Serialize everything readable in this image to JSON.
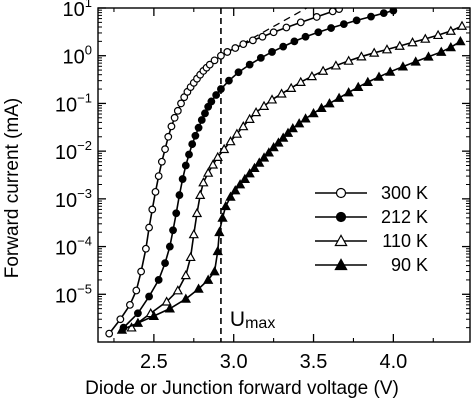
{
  "chart_data": {
    "type": "line",
    "title": "",
    "xlabel": "Diode or Junction forward voltage (V)",
    "ylabel": "Forward current  (mA)",
    "xlim": [
      2.15,
      4.48
    ],
    "ylim": [
      1e-06,
      10
    ],
    "y_scale": "log",
    "x_ticks": [
      "2.5",
      "3.0",
      "3.5",
      "4.0"
    ],
    "x_tick_values": [
      2.5,
      3.0,
      3.5,
      4.0
    ],
    "y_tick_exponents": [
      -5,
      -4,
      -3,
      -2,
      -1,
      0,
      1
    ],
    "y_tick_base": "10",
    "grid": false,
    "legend_position": "right",
    "annotations": [
      {
        "text": "U",
        "subscript": "max",
        "x": 2.92,
        "style": "vertical-dashed-line"
      },
      {
        "text": "",
        "style": "dashed-extrapolation",
        "x": [
          2.92,
          3.5
        ],
        "y": [
          1.0,
          12
        ]
      }
    ],
    "series": [
      {
        "name": "300 K",
        "marker": "open-circle",
        "x": [
          2.22,
          2.29,
          2.35,
          2.39,
          2.42,
          2.45,
          2.47,
          2.49,
          2.51,
          2.53,
          2.55,
          2.57,
          2.59,
          2.61,
          2.63,
          2.65,
          2.67,
          2.69,
          2.71,
          2.73,
          2.75,
          2.77,
          2.79,
          2.81,
          2.83,
          2.85,
          2.88,
          2.92,
          2.96,
          3.01,
          3.06,
          3.12,
          3.18,
          3.25,
          3.33,
          3.42,
          3.52,
          3.62,
          3.66
        ],
        "y": [
          1.5e-06,
          3e-06,
          6e-06,
          1.2e-05,
          3e-05,
          9e-05,
          0.00025,
          0.0006,
          0.0014,
          0.003,
          0.006,
          0.011,
          0.02,
          0.033,
          0.05,
          0.07,
          0.1,
          0.135,
          0.175,
          0.22,
          0.27,
          0.33,
          0.4,
          0.48,
          0.56,
          0.65,
          0.8,
          1.0,
          1.2,
          1.45,
          1.75,
          2.1,
          2.5,
          3.1,
          3.9,
          5.0,
          6.5,
          8.5,
          9.5
        ]
      },
      {
        "name": "212 K",
        "marker": "filled-circle",
        "x": [
          2.31,
          2.4,
          2.47,
          2.53,
          2.57,
          2.6,
          2.62,
          2.64,
          2.66,
          2.68,
          2.7,
          2.72,
          2.74,
          2.76,
          2.78,
          2.8,
          2.82,
          2.84,
          2.86,
          2.89,
          2.92,
          2.97,
          3.03,
          3.1,
          3.17,
          3.24,
          3.31,
          3.38,
          3.45,
          3.53,
          3.61,
          3.69,
          3.77,
          3.86,
          3.94,
          4.0
        ],
        "y": [
          2e-06,
          4e-06,
          9e-06,
          2e-05,
          4.5e-05,
          0.0001,
          0.00022,
          0.0005,
          0.0012,
          0.0026,
          0.005,
          0.0085,
          0.014,
          0.021,
          0.031,
          0.045,
          0.062,
          0.085,
          0.11,
          0.15,
          0.2,
          0.3,
          0.45,
          0.65,
          0.9,
          1.2,
          1.55,
          2.0,
          2.5,
          3.1,
          3.8,
          4.6,
          5.5,
          6.6,
          7.8,
          8.8
        ]
      },
      {
        "name": "110 K",
        "marker": "open-triangle",
        "x": [
          2.36,
          2.48,
          2.58,
          2.65,
          2.7,
          2.73,
          2.75,
          2.77,
          2.79,
          2.81,
          2.84,
          2.87,
          2.9,
          2.94,
          2.98,
          3.02,
          3.06,
          3.1,
          3.14,
          3.19,
          3.24,
          3.3,
          3.36,
          3.42,
          3.49,
          3.56,
          3.64,
          3.72,
          3.8,
          3.88,
          3.96,
          4.04,
          4.12,
          4.2,
          4.28,
          4.36,
          4.43
        ],
        "y": [
          2e-06,
          4e-06,
          7e-06,
          1.2e-05,
          2.5e-05,
          6e-05,
          0.00018,
          0.0005,
          0.0012,
          0.0022,
          0.0035,
          0.0052,
          0.0075,
          0.011,
          0.016,
          0.023,
          0.033,
          0.047,
          0.065,
          0.088,
          0.12,
          0.16,
          0.21,
          0.28,
          0.37,
          0.48,
          0.62,
          0.78,
          0.96,
          1.15,
          1.35,
          1.6,
          1.9,
          2.25,
          2.7,
          3.3,
          4.2
        ]
      },
      {
        "name": "90 K",
        "marker": "filled-triangle",
        "x": [
          2.3,
          2.4,
          2.5,
          2.6,
          2.7,
          2.78,
          2.84,
          2.88,
          2.9,
          2.91,
          2.93,
          2.95,
          2.98,
          3.01,
          3.04,
          3.07,
          3.1,
          3.13,
          3.16,
          3.19,
          3.22,
          3.25,
          3.28,
          3.31,
          3.34,
          3.37,
          3.41,
          3.45,
          3.5,
          3.55,
          3.6,
          3.66,
          3.72,
          3.78,
          3.84,
          3.91,
          3.98,
          4.06,
          4.14,
          4.22,
          4.3,
          4.36,
          4.42
        ],
        "y": [
          1.8e-06,
          2.5e-06,
          3.5e-06,
          5e-06,
          8e-06,
          1.3e-05,
          2e-05,
          3e-05,
          8e-05,
          0.0002,
          0.0004,
          0.0007,
          0.0011,
          0.0015,
          0.002,
          0.0026,
          0.0034,
          0.0044,
          0.0057,
          0.0073,
          0.0093,
          0.012,
          0.015,
          0.019,
          0.024,
          0.03,
          0.038,
          0.048,
          0.062,
          0.08,
          0.1,
          0.13,
          0.17,
          0.22,
          0.28,
          0.36,
          0.46,
          0.59,
          0.75,
          0.95,
          1.2,
          1.5,
          2.0
        ]
      }
    ]
  }
}
